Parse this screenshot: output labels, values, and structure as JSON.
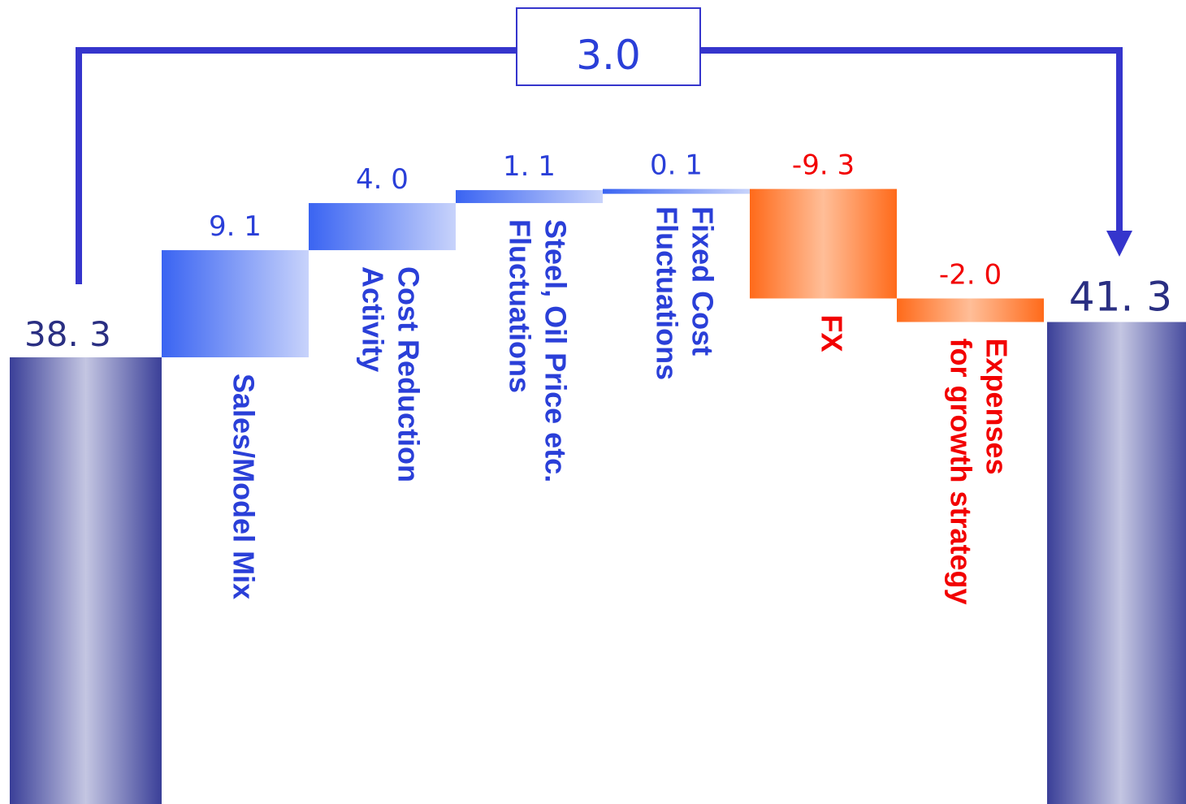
{
  "chart_data": {
    "type": "bar",
    "subtype": "waterfall",
    "start": {
      "label": "38. 3",
      "value": 38.3
    },
    "end": {
      "label": "41. 3",
      "value": 41.3
    },
    "total_change": {
      "label": "3.0",
      "value": 3.0
    },
    "steps": [
      {
        "category": [
          "Sales/Model Mix"
        ],
        "label": "9. 1",
        "value": 9.1
      },
      {
        "category": [
          "Cost Reduction",
          "Activity"
        ],
        "label": "4. 0",
        "value": 4.0
      },
      {
        "category": [
          "Steel, Oil Price etc.",
          "Fluctuations"
        ],
        "label": "1. 1",
        "value": 1.1
      },
      {
        "category": [
          "Fixed Cost",
          "Fluctuations"
        ],
        "label": "0. 1",
        "value": 0.1
      },
      {
        "category": [
          "FX"
        ],
        "label": "-9. 3",
        "value": -9.3
      },
      {
        "category": [
          "Expenses",
          "for growth strategy"
        ],
        "label": "-2. 0",
        "value": -2.0
      }
    ],
    "colors": {
      "total": "#3a3f98",
      "total_light": "#c4c6e2",
      "positive": "#3a64f2",
      "positive_light": "#c8d3fb",
      "negative": "#ff6a1a",
      "negative_light": "#ffbe98",
      "positive_text": "#2a3fd8",
      "negative_text": "#f20000",
      "total_text": "#2a2f82",
      "connector": "#3535cc"
    }
  }
}
